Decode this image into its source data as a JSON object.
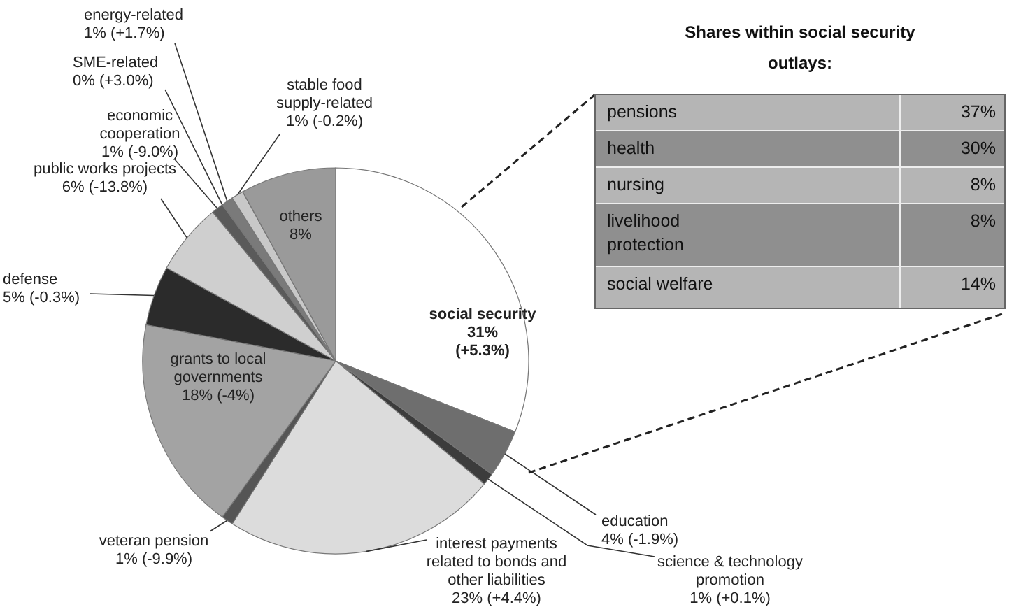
{
  "chart_data": [
    {
      "type": "pie",
      "categories": [
        "social security",
        "education",
        "science & technology promotion",
        "interest payments related to bonds and other liabilities",
        "veteran pension",
        "grants to local governments",
        "defense",
        "public works projects",
        "economic cooperation",
        "SME-related",
        "energy-related",
        "stable food supply-related",
        "others"
      ],
      "values": [
        31,
        4,
        1,
        23,
        1,
        18,
        5,
        6,
        1,
        0,
        1,
        1,
        8
      ],
      "value_labels": [
        "31% (+5.3%)",
        "4% (-1.9%)",
        "1% (+0.1%)",
        "23% (+4.4%)",
        "1% (-9.9%)",
        "18% (-4%)",
        "5% (-0.3%)",
        "6% (-13.8%)",
        "1% (-9.0%)",
        "0% (+3.0%)",
        "1% (+1.7%)",
        "1% (-0.2%)",
        "8%"
      ],
      "colors": [
        "#ffffff",
        "#6e6e6e",
        "#3c3c3c",
        "#dcdcdc",
        "#555555",
        "#a3a3a3",
        "#2b2b2b",
        "#cfcfcf",
        "#5a5a5a",
        "#333333",
        "#7a7a7a",
        "#c8c8c8",
        "#9a9a9a"
      ],
      "legend": false
    },
    {
      "type": "other",
      "title": "Shares within social security outlays:",
      "categories": [
        "pensions",
        "health",
        "nursing",
        "livelihood protection",
        "social welfare"
      ],
      "value_labels": [
        "37%",
        "30%",
        "8%",
        "8%",
        "14%"
      ]
    }
  ]
}
